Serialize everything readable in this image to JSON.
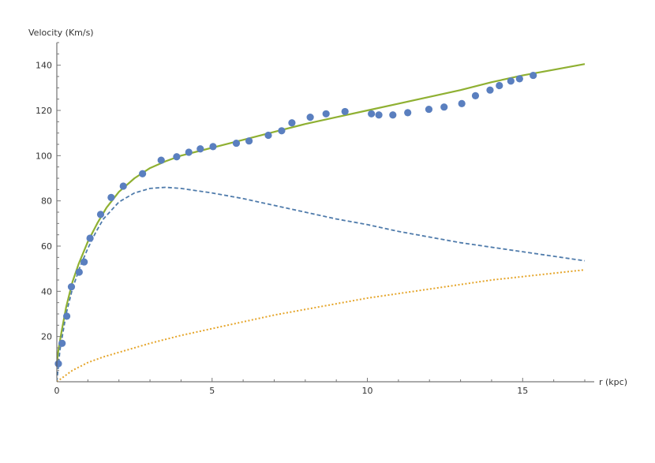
{
  "chart_data": {
    "type": "scatter",
    "xlabel": "r (kpc)",
    "ylabel": "Velocity (Km/s)",
    "xlim": [
      0,
      17
    ],
    "ylim": [
      0,
      150
    ],
    "x_ticks": [
      0,
      5,
      10,
      15
    ],
    "y_ticks": [
      20,
      40,
      60,
      80,
      100,
      120,
      140
    ],
    "grid": false,
    "legend": "none",
    "series": [
      {
        "style": "markers",
        "color": "#5a7fbf",
        "points": [
          [
            0.05,
            8
          ],
          [
            0.17,
            17
          ],
          [
            0.32,
            29
          ],
          [
            0.47,
            42
          ],
          [
            0.72,
            48.5
          ],
          [
            0.88,
            53
          ],
          [
            1.07,
            63.5
          ],
          [
            1.41,
            74
          ],
          [
            1.75,
            81.5
          ],
          [
            2.14,
            86.5
          ],
          [
            2.76,
            92
          ],
          [
            3.36,
            98
          ],
          [
            3.86,
            99.5
          ],
          [
            4.25,
            101.5
          ],
          [
            4.62,
            103
          ],
          [
            5.03,
            104
          ],
          [
            5.78,
            105.5
          ],
          [
            6.19,
            106.5
          ],
          [
            6.81,
            109
          ],
          [
            7.24,
            111
          ],
          [
            7.57,
            114.5
          ],
          [
            8.16,
            117
          ],
          [
            8.67,
            118.5
          ],
          [
            9.28,
            119.5
          ],
          [
            10.13,
            118.5
          ],
          [
            10.37,
            118
          ],
          [
            10.82,
            118
          ],
          [
            11.3,
            119
          ],
          [
            11.98,
            120.5
          ],
          [
            12.47,
            121.5
          ],
          [
            13.04,
            123
          ],
          [
            13.48,
            126.5
          ],
          [
            13.95,
            129
          ],
          [
            14.25,
            131
          ],
          [
            14.62,
            133
          ],
          [
            14.9,
            134
          ],
          [
            15.34,
            135.5
          ]
        ]
      },
      {
        "style": "solid",
        "color": "#8fb032",
        "points": [
          [
            0,
            8
          ],
          [
            0.05,
            14
          ],
          [
            0.15,
            22
          ],
          [
            0.3,
            33
          ],
          [
            0.5,
            44
          ],
          [
            0.7,
            52
          ],
          [
            1.0,
            62
          ],
          [
            1.3,
            70
          ],
          [
            1.6,
            77
          ],
          [
            2.0,
            84
          ],
          [
            2.5,
            90
          ],
          [
            3.0,
            94.5
          ],
          [
            3.5,
            97.5
          ],
          [
            4.0,
            100
          ],
          [
            5.0,
            103.5
          ],
          [
            6.0,
            107
          ],
          [
            7.0,
            110.5
          ],
          [
            8.0,
            114
          ],
          [
            9.0,
            117
          ],
          [
            10.0,
            120
          ],
          [
            11.0,
            123
          ],
          [
            12.0,
            126
          ],
          [
            13.0,
            129
          ],
          [
            14.0,
            132.5
          ],
          [
            15.0,
            135.5
          ],
          [
            16.0,
            138
          ],
          [
            17.0,
            140.5
          ]
        ]
      },
      {
        "style": "dashed",
        "color": "#4f7bab",
        "points": [
          [
            0,
            0
          ],
          [
            0.1,
            14
          ],
          [
            0.3,
            30
          ],
          [
            0.5,
            41
          ],
          [
            0.75,
            51
          ],
          [
            1.0,
            59
          ],
          [
            1.25,
            66
          ],
          [
            1.5,
            72
          ],
          [
            2.0,
            79.5
          ],
          [
            2.5,
            83.5
          ],
          [
            3.0,
            85.5
          ],
          [
            3.5,
            86
          ],
          [
            4.0,
            85.5
          ],
          [
            5.0,
            83.5
          ],
          [
            6.0,
            81
          ],
          [
            7.0,
            78
          ],
          [
            8.0,
            75
          ],
          [
            9.0,
            72
          ],
          [
            10.0,
            69.5
          ],
          [
            11.0,
            66.5
          ],
          [
            12.0,
            64
          ],
          [
            13.0,
            61.5
          ],
          [
            14.0,
            59.5
          ],
          [
            15.0,
            57.5
          ],
          [
            16.0,
            55.5
          ],
          [
            17.0,
            53.5
          ]
        ]
      },
      {
        "style": "dotted",
        "color": "#e5a52a",
        "points": [
          [
            0,
            0
          ],
          [
            0.5,
            5
          ],
          [
            1.0,
            8.5
          ],
          [
            1.5,
            11
          ],
          [
            2.0,
            13
          ],
          [
            2.5,
            15
          ],
          [
            3.0,
            17
          ],
          [
            4.0,
            20.5
          ],
          [
            5.0,
            23.5
          ],
          [
            6.0,
            26.5
          ],
          [
            7.0,
            29.5
          ],
          [
            8.0,
            32
          ],
          [
            9.0,
            34.5
          ],
          [
            10.0,
            37
          ],
          [
            11.0,
            39
          ],
          [
            12.0,
            41
          ],
          [
            13.0,
            43
          ],
          [
            14.0,
            45
          ],
          [
            15.0,
            46.5
          ],
          [
            16.0,
            48
          ],
          [
            17.0,
            49.5
          ]
        ]
      }
    ]
  }
}
